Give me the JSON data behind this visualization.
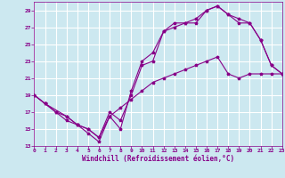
{
  "bg_color": "#cce8f0",
  "grid_color": "#ffffff",
  "line_color": "#880088",
  "xlabel": "Windchill (Refroidissement éolien,°C)",
  "tick_color": "#880088",
  "ylim": [
    13,
    30
  ],
  "xlim": [
    0,
    23
  ],
  "yticks": [
    13,
    15,
    17,
    19,
    21,
    23,
    25,
    27,
    29
  ],
  "xticks": [
    0,
    1,
    2,
    3,
    4,
    5,
    6,
    7,
    8,
    9,
    10,
    11,
    12,
    13,
    14,
    15,
    16,
    17,
    18,
    19,
    20,
    21,
    22,
    23
  ],
  "line1_x": [
    0,
    1,
    2,
    3,
    4,
    5,
    6,
    7,
    8,
    9,
    10,
    11,
    12,
    13,
    14,
    15,
    16,
    17,
    18,
    19,
    20,
    21,
    22,
    23
  ],
  "line1_y": [
    19,
    18,
    17,
    16.5,
    15.5,
    14.5,
    13.5,
    16.5,
    15,
    19.5,
    23,
    24,
    26.5,
    27,
    27.5,
    28,
    29,
    29.5,
    28.5,
    28,
    27.5,
    25.5,
    22.5,
    21.5
  ],
  "line2_x": [
    0,
    1,
    3,
    4,
    5,
    6,
    7,
    8,
    9,
    10,
    11,
    12,
    13,
    14,
    15,
    16,
    17,
    18,
    19,
    20,
    21,
    22,
    23
  ],
  "line2_y": [
    19,
    18,
    16.5,
    15.5,
    15,
    14,
    17,
    16,
    19,
    22.5,
    23,
    26.5,
    27.5,
    27.5,
    27.5,
    29,
    29.5,
    28.5,
    27.5,
    27.5,
    25.5,
    22.5,
    21.5
  ],
  "line3_x": [
    0,
    1,
    2,
    3,
    4,
    5,
    6,
    7,
    8,
    9,
    10,
    11,
    12,
    13,
    14,
    15,
    16,
    17,
    18,
    19,
    20,
    21,
    22,
    23
  ],
  "line3_y": [
    19,
    18,
    17,
    16,
    15.5,
    15,
    14,
    16.5,
    17.5,
    18.5,
    19.5,
    20.5,
    21,
    21.5,
    22,
    22.5,
    23,
    23.5,
    21.5,
    21,
    21.5,
    21.5,
    21.5,
    21.5
  ]
}
